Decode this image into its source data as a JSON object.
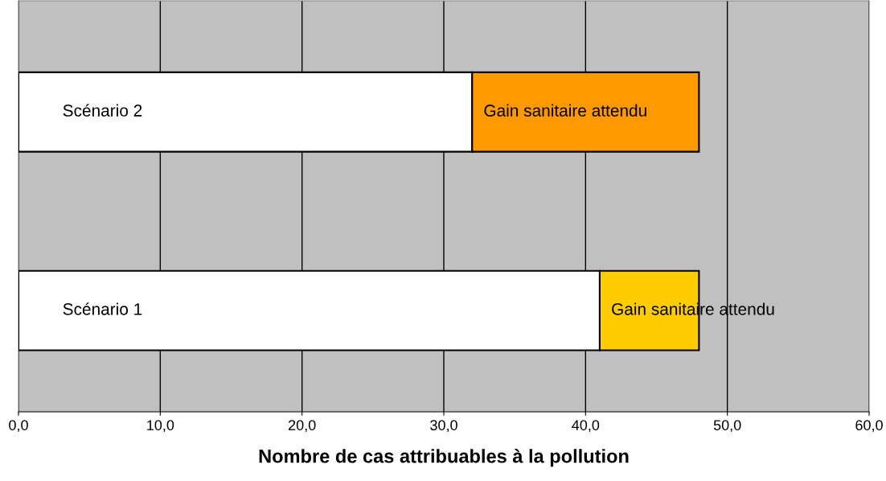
{
  "chart_data": {
    "type": "bar",
    "orientation": "horizontal",
    "stacked": true,
    "xlabel": "Nombre de cas attribuables à la pollution",
    "categories": [
      "Scénario 2",
      "Scénario 1"
    ],
    "series": [
      {
        "color": "#ffffff",
        "values": [
          32.0,
          41.0
        ]
      },
      {
        "name": "Gain sanitaire attendu",
        "colors": [
          "#ff9900",
          "#ffcc00"
        ],
        "values": [
          16.0,
          7.0
        ]
      }
    ],
    "xlim": [
      0,
      60
    ],
    "xticks": [
      {
        "value": 0,
        "label": "0,0"
      },
      {
        "value": 10,
        "label": "10,0"
      },
      {
        "value": 20,
        "label": "20,0"
      },
      {
        "value": 30,
        "label": "30,0"
      },
      {
        "value": 40,
        "label": "40,0"
      },
      {
        "value": 50,
        "label": "50,0"
      },
      {
        "value": 60,
        "label": "60,0"
      }
    ],
    "grid": "x",
    "legend": false
  }
}
